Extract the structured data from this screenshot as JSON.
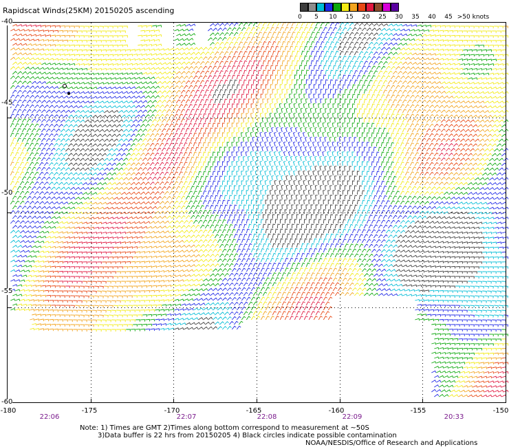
{
  "title": "Rapidscat Winds(25KM) 20150205 ascending",
  "legend": {
    "labels": [
      "0",
      "5",
      "10",
      "15",
      "20",
      "25",
      "30",
      "35",
      "40",
      "45",
      ">50 knots"
    ],
    "colors": [
      "#3c3c3c",
      "#8c8c8c",
      "#00bcd6",
      "#1e28e6",
      "#0ca80c",
      "#f2ea14",
      "#f2a41e",
      "#e84814",
      "#e01840",
      "#8c4a2a",
      "#d800d8",
      "#5a00a0"
    ]
  },
  "map": {
    "lat_labels": [
      "-40",
      "-45",
      "-50",
      "-55",
      "-60"
    ],
    "lon_labels": [
      "-180",
      "-175",
      "-170",
      "-165",
      "-160",
      "-155",
      "-150"
    ],
    "grid": true
  },
  "times": [
    "22:06",
    "22:07",
    "22:08",
    "22:09",
    "20:33"
  ],
  "notes": {
    "line1": "Note: 1) Times are GMT 2)Times along bottom correspond to measurement at ~50S",
    "line2": "3)Data buffer is 22 hrs from 20150205 4) Black circles indicate possible contamination",
    "credit": "NOAA/NESDIS/Office of Research and Applications"
  }
}
